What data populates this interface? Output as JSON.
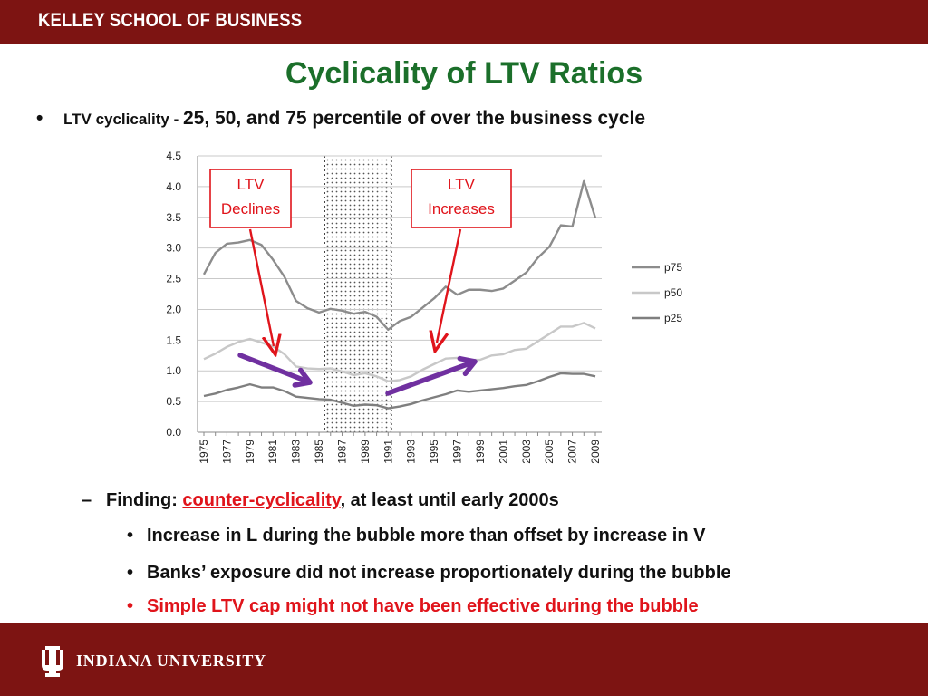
{
  "header": {
    "school": "KELLEY SCHOOL OF BUSINESS"
  },
  "slide": {
    "title": "Cyclicality of LTV Ratios",
    "bullet_prefix": "LTV cyclicality - ",
    "bullet_main": "25, 50, and 75 percentile of over the business cycle",
    "finding_prefix": "Finding: ",
    "finding_highlight": "counter-cyclicality",
    "finding_suffix": ", at least until early 2000s",
    "points": [
      "Increase in L during the bubble more than offset by increase in V",
      "Banks’ exposure did not increase proportionately during the bubble",
      "Simple LTV cap might not have been effective during the bubble"
    ]
  },
  "footer": {
    "university": "INDIANA UNIVERSITY"
  },
  "colors": {
    "maroon": "#7d1412",
    "title_green": "#1b6f2a",
    "red": "#e0141b",
    "arrow_purple": "#7030a0",
    "p75": "#8c8c8c",
    "p50": "#c8c8c8",
    "p25": "#7f7f7f"
  },
  "annotations": {
    "declines": [
      "LTV",
      "Declines"
    ],
    "increases": [
      "LTV",
      "Increases"
    ]
  },
  "chart_data": {
    "type": "line",
    "x": [
      1975,
      1976,
      1977,
      1978,
      1979,
      1980,
      1981,
      1982,
      1983,
      1984,
      1985,
      1986,
      1987,
      1988,
      1989,
      1990,
      1991,
      1992,
      1993,
      1994,
      1995,
      1996,
      1997,
      1998,
      1999,
      2000,
      2001,
      2002,
      2003,
      2004,
      2005,
      2006,
      2007,
      2008,
      2009
    ],
    "x_tick_labels": [
      "1975",
      "1977",
      "1979",
      "1981",
      "1983",
      "1985",
      "1987",
      "1989",
      "1991",
      "1993",
      "1995",
      "1997",
      "1999",
      "2001",
      "2003",
      "2005",
      "2007",
      "2009"
    ],
    "ylim": [
      0,
      4.5
    ],
    "y_ticks": [
      "0.0",
      "0.5",
      "1.0",
      "1.5",
      "2.0",
      "2.5",
      "3.0",
      "3.5",
      "4.0",
      "4.5"
    ],
    "grid": true,
    "legend_position": "right",
    "shaded_range": [
      1985.5,
      1991.3
    ],
    "series": [
      {
        "name": "p75",
        "values": [
          2.57,
          2.92,
          3.07,
          3.09,
          3.13,
          3.05,
          2.81,
          2.53,
          2.14,
          2.02,
          1.95,
          2.01,
          1.98,
          1.93,
          1.96,
          1.88,
          1.67,
          1.81,
          1.88,
          2.03,
          2.18,
          2.37,
          2.24,
          2.32,
          2.32,
          2.3,
          2.34,
          2.47,
          2.6,
          2.84,
          3.02,
          3.37,
          3.35,
          4.09,
          3.49
        ]
      },
      {
        "name": "p50",
        "values": [
          1.19,
          1.28,
          1.39,
          1.47,
          1.52,
          1.46,
          1.4,
          1.27,
          1.07,
          1.04,
          1.03,
          1.04,
          0.99,
          0.93,
          0.96,
          0.91,
          0.83,
          0.85,
          0.91,
          1.02,
          1.11,
          1.2,
          1.21,
          1.18,
          1.18,
          1.25,
          1.27,
          1.34,
          1.36,
          1.48,
          1.6,
          1.72,
          1.72,
          1.78,
          1.69
        ]
      },
      {
        "name": "p25",
        "values": [
          0.59,
          0.63,
          0.69,
          0.73,
          0.78,
          0.73,
          0.73,
          0.67,
          0.58,
          0.56,
          0.54,
          0.53,
          0.48,
          0.43,
          0.45,
          0.44,
          0.39,
          0.42,
          0.46,
          0.52,
          0.57,
          0.62,
          0.68,
          0.66,
          0.68,
          0.7,
          0.72,
          0.75,
          0.77,
          0.83,
          0.9,
          0.96,
          0.95,
          0.95,
          0.91
        ]
      }
    ]
  }
}
